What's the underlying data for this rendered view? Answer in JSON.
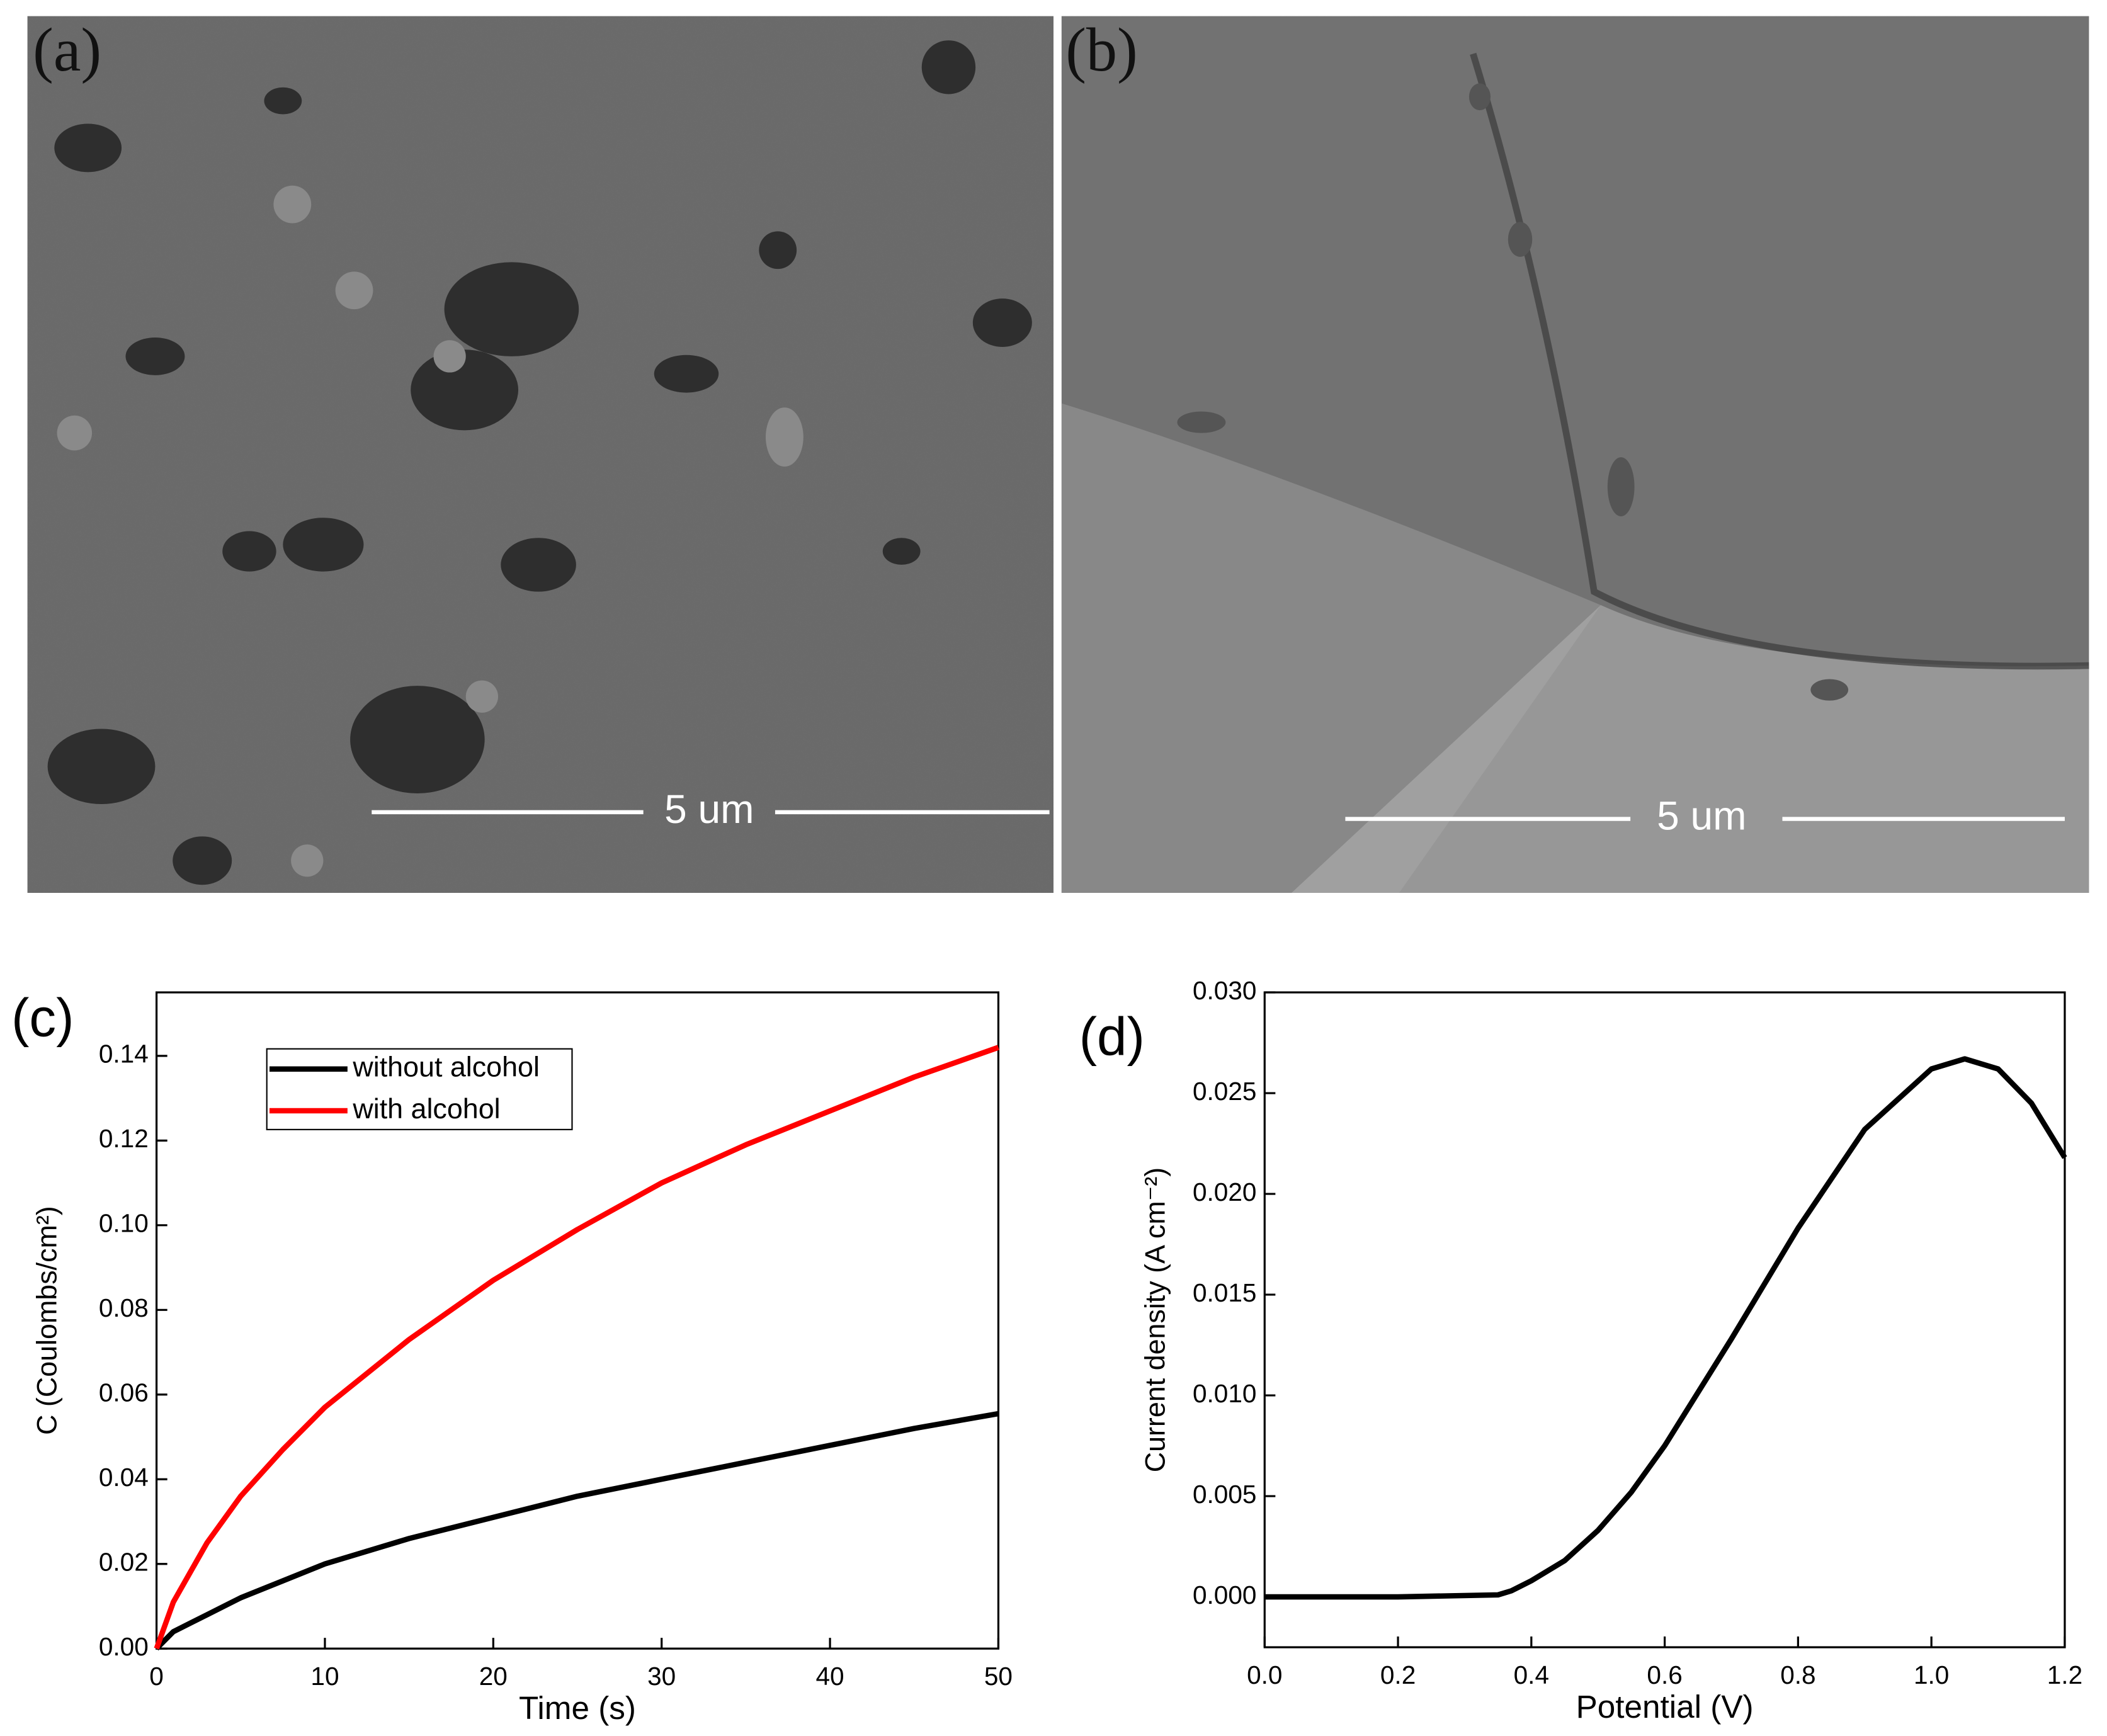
{
  "panels": [
    {
      "label": "(a)",
      "scale_bar": "5 um"
    },
    {
      "label": "(b)",
      "scale_bar": "5 um"
    }
  ],
  "chart_data": [
    {
      "type": "line",
      "label": "(c)",
      "xlabel": "Time (s)",
      "ylabel": "C (Coulombs/cm²)",
      "xlim": [
        0,
        50
      ],
      "xticks": [
        0,
        10,
        20,
        30,
        40,
        50
      ],
      "ylim": [
        0,
        0.155
      ],
      "yticks": [
        {
          "value": 0,
          "label": "0.00"
        },
        0.02,
        0.04,
        0.06,
        0.08,
        {
          "value": 0.1,
          "label": "0.10"
        },
        0.12,
        0.14
      ],
      "legend": "upper left",
      "x": [
        0,
        1,
        2,
        3,
        5,
        7.5,
        10,
        15,
        20,
        25,
        30,
        35,
        40,
        45,
        50
      ],
      "series": [
        {
          "name": "without alcohol",
          "color": "#000000",
          "values": [
            0,
            0.004,
            0.006,
            0.008,
            0.012,
            0.016,
            0.02,
            0.026,
            0.031,
            0.036,
            0.04,
            0.044,
            0.048,
            0.052,
            0.0555
          ]
        },
        {
          "name": "with alcohol",
          "color": "#ff0000",
          "values": [
            0,
            0.011,
            0.018,
            0.025,
            0.036,
            0.047,
            0.057,
            0.073,
            0.087,
            0.099,
            0.11,
            0.119,
            0.127,
            0.135,
            0.142
          ]
        }
      ]
    },
    {
      "type": "line",
      "label": "(d)",
      "xlabel": "Potential (V)",
      "ylabel": "Current density (A cm⁻²)",
      "xlim": [
        0,
        1.2
      ],
      "xticks": [
        {
          "value": 0,
          "label": "0.0"
        },
        0.2,
        0.4,
        0.6,
        0.8,
        {
          "value": 1,
          "label": "1.0"
        },
        1.2
      ],
      "ylim": [
        -0.0025,
        0.03
      ],
      "yticks": [
        {
          "value": 0,
          "label": "0.000"
        },
        0.005,
        {
          "value": 0.01,
          "label": "0.010"
        },
        0.015,
        {
          "value": 0.02,
          "label": "0.020"
        },
        0.025,
        {
          "value": 0.03,
          "label": "0.030"
        }
      ],
      "x": [
        0,
        0.2,
        0.35,
        0.37,
        0.4,
        0.45,
        0.5,
        0.55,
        0.6,
        0.7,
        0.8,
        0.9,
        1.0,
        1.05,
        1.1,
        1.15,
        1.2
      ],
      "series": [
        {
          "color": "#000000",
          "values": [
            0,
            0,
            0.0001,
            0.0003,
            0.0008,
            0.0018,
            0.0033,
            0.0052,
            0.0075,
            0.0128,
            0.0183,
            0.0232,
            0.0262,
            0.0267,
            0.0262,
            0.0245,
            0.0218
          ]
        }
      ]
    }
  ]
}
